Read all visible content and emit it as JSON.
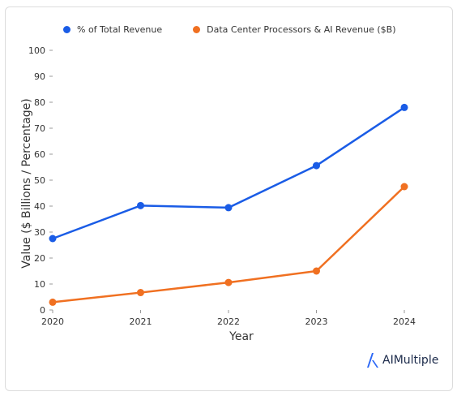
{
  "chart_data": {
    "type": "line",
    "xlabel": "Year",
    "ylabel": "Value ($ Billions / Percentage)",
    "categories": [
      "2020",
      "2021",
      "2022",
      "2023",
      "2024"
    ],
    "ylim": [
      0,
      100
    ],
    "yticks": [
      0,
      10,
      20,
      30,
      40,
      50,
      60,
      70,
      80,
      90,
      100
    ],
    "grid": false,
    "legend_position": "top-left",
    "series": [
      {
        "name": "% of Total Revenue",
        "color": "#1a5ce6",
        "values": [
          27.5,
          40.2,
          39.4,
          55.6,
          78
        ]
      },
      {
        "name": "Data Center Processors & AI Revenue ($B)",
        "color": "#f07021",
        "values": [
          3,
          6.7,
          10.6,
          15,
          47.5
        ]
      }
    ]
  },
  "branding": {
    "logo_text": "AIMultiple",
    "logo_icon": "aimultiple-logo-icon",
    "logo_color": "#2b67f6"
  }
}
